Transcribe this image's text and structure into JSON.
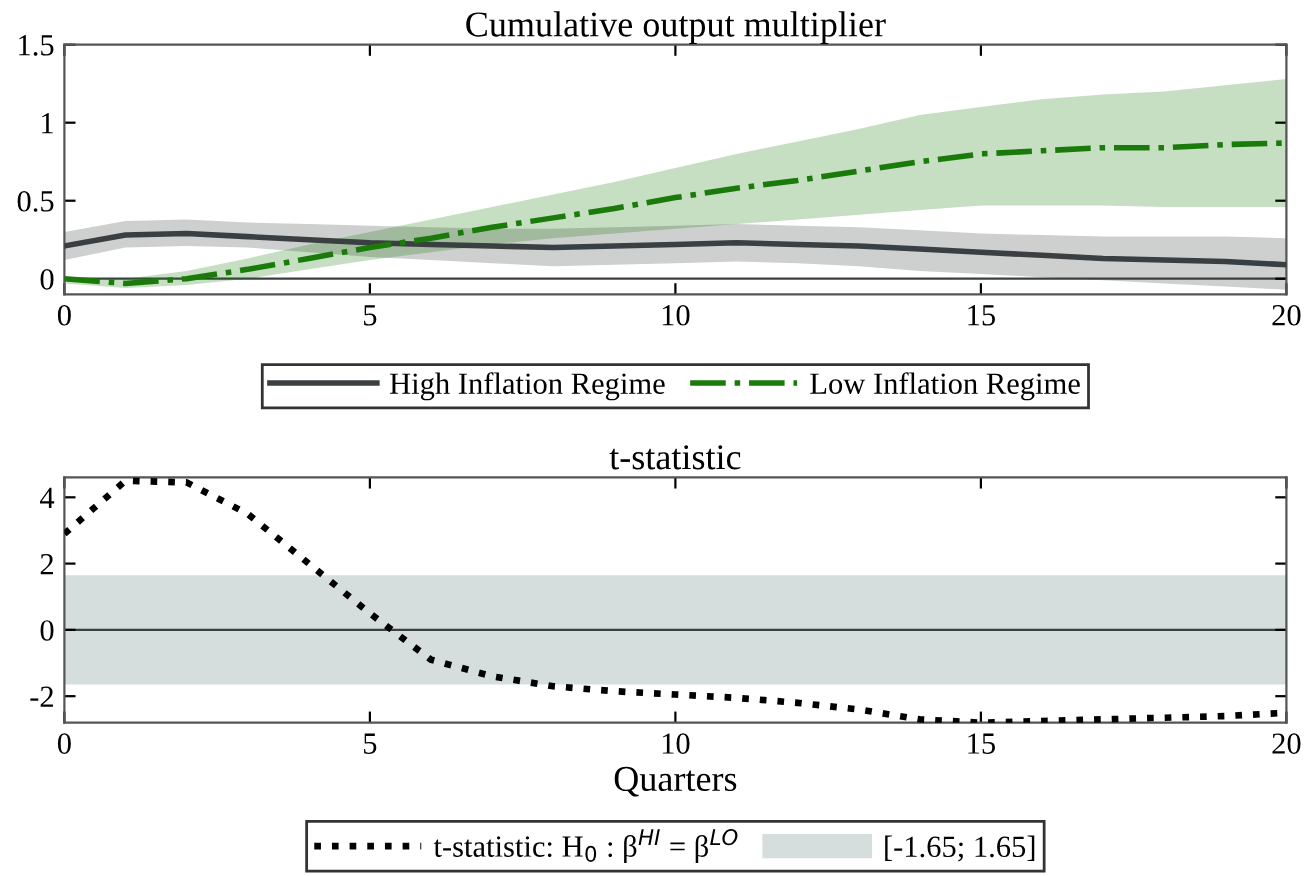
{
  "chart_data": [
    {
      "type": "line",
      "title": "Cumulative output multiplier",
      "x": [
        0,
        1,
        2,
        3,
        4,
        5,
        6,
        7,
        8,
        9,
        10,
        11,
        12,
        13,
        14,
        15,
        16,
        17,
        18,
        19,
        20
      ],
      "xlim": [
        0,
        20
      ],
      "xticks": [
        0,
        5,
        10,
        15,
        20
      ],
      "ylim": [
        -0.1,
        1.5
      ],
      "yticks": [
        0,
        0.5,
        1,
        1.5
      ],
      "grid": false,
      "legend": "bottom",
      "marker": "none",
      "series": [
        {
          "name": "High Inflation Regime",
          "color": "#3a3f41",
          "line_style": "solid",
          "values": [
            0.21,
            0.28,
            0.29,
            0.27,
            0.25,
            0.23,
            0.22,
            0.21,
            0.2,
            0.21,
            0.22,
            0.23,
            0.22,
            0.21,
            0.19,
            0.17,
            0.15,
            0.13,
            0.12,
            0.11,
            0.09
          ],
          "lower": [
            0.12,
            0.2,
            0.21,
            0.2,
            0.17,
            0.14,
            0.12,
            0.1,
            0.08,
            0.09,
            0.1,
            0.11,
            0.1,
            0.08,
            0.05,
            0.03,
            0.01,
            -0.01,
            -0.03,
            -0.05,
            -0.07
          ],
          "upper": [
            0.3,
            0.37,
            0.38,
            0.36,
            0.35,
            0.34,
            0.33,
            0.32,
            0.32,
            0.33,
            0.34,
            0.35,
            0.34,
            0.33,
            0.31,
            0.29,
            0.28,
            0.27,
            0.27,
            0.27,
            0.26
          ]
        },
        {
          "name": "Low Inflation Regime",
          "color": "#1a7a0a",
          "line_style": "dashdot",
          "values": [
            0.0,
            -0.03,
            0.0,
            0.06,
            0.13,
            0.2,
            0.26,
            0.33,
            0.39,
            0.45,
            0.52,
            0.58,
            0.63,
            0.69,
            0.75,
            0.8,
            0.82,
            0.84,
            0.84,
            0.86,
            0.87
          ],
          "lower": [
            -0.03,
            -0.06,
            -0.04,
            0.0,
            0.06,
            0.12,
            0.17,
            0.22,
            0.26,
            0.29,
            0.32,
            0.35,
            0.38,
            0.41,
            0.44,
            0.47,
            0.47,
            0.47,
            0.46,
            0.46,
            0.46
          ],
          "upper": [
            0.01,
            0.0,
            0.05,
            0.13,
            0.22,
            0.3,
            0.38,
            0.46,
            0.54,
            0.62,
            0.71,
            0.8,
            0.88,
            0.96,
            1.05,
            1.1,
            1.15,
            1.18,
            1.2,
            1.24,
            1.28
          ]
        }
      ],
      "ref_lines": [
        {
          "axis": "y",
          "value": 0,
          "color": "#3a3f41"
        }
      ]
    },
    {
      "type": "line",
      "title": "t-statistic",
      "xlabel": "Quarters",
      "x": [
        0,
        1,
        2,
        3,
        4,
        5,
        6,
        7,
        8,
        9,
        10,
        11,
        12,
        13,
        14,
        15,
        16,
        17,
        18,
        19,
        20
      ],
      "xlim": [
        0,
        20
      ],
      "xticks": [
        0,
        5,
        10,
        15,
        20
      ],
      "ylim": [
        -2.8,
        4.6
      ],
      "yticks": [
        -2,
        0,
        2,
        4
      ],
      "grid": false,
      "legend": "bottom",
      "marker": "none",
      "series": [
        {
          "name": "t-statistic: H$_{0}$ : β$^{HI}$ = β$^{LO}$",
          "color": "#000000",
          "line_style": "dotted",
          "values": [
            2.9,
            4.5,
            4.45,
            3.5,
            2.0,
            0.5,
            -0.9,
            -1.4,
            -1.7,
            -1.85,
            -1.95,
            -2.05,
            -2.2,
            -2.4,
            -2.7,
            -2.8,
            -2.75,
            -2.7,
            -2.65,
            -2.6,
            -2.5
          ]
        }
      ],
      "bands": [
        {
          "axis": "y",
          "from": -1.65,
          "to": 1.65,
          "label": "[-1.65; 1.65]",
          "color": "#d5dedc"
        }
      ],
      "ref_lines": [
        {
          "axis": "y",
          "value": 0,
          "color": "#3a3f41"
        }
      ]
    }
  ]
}
